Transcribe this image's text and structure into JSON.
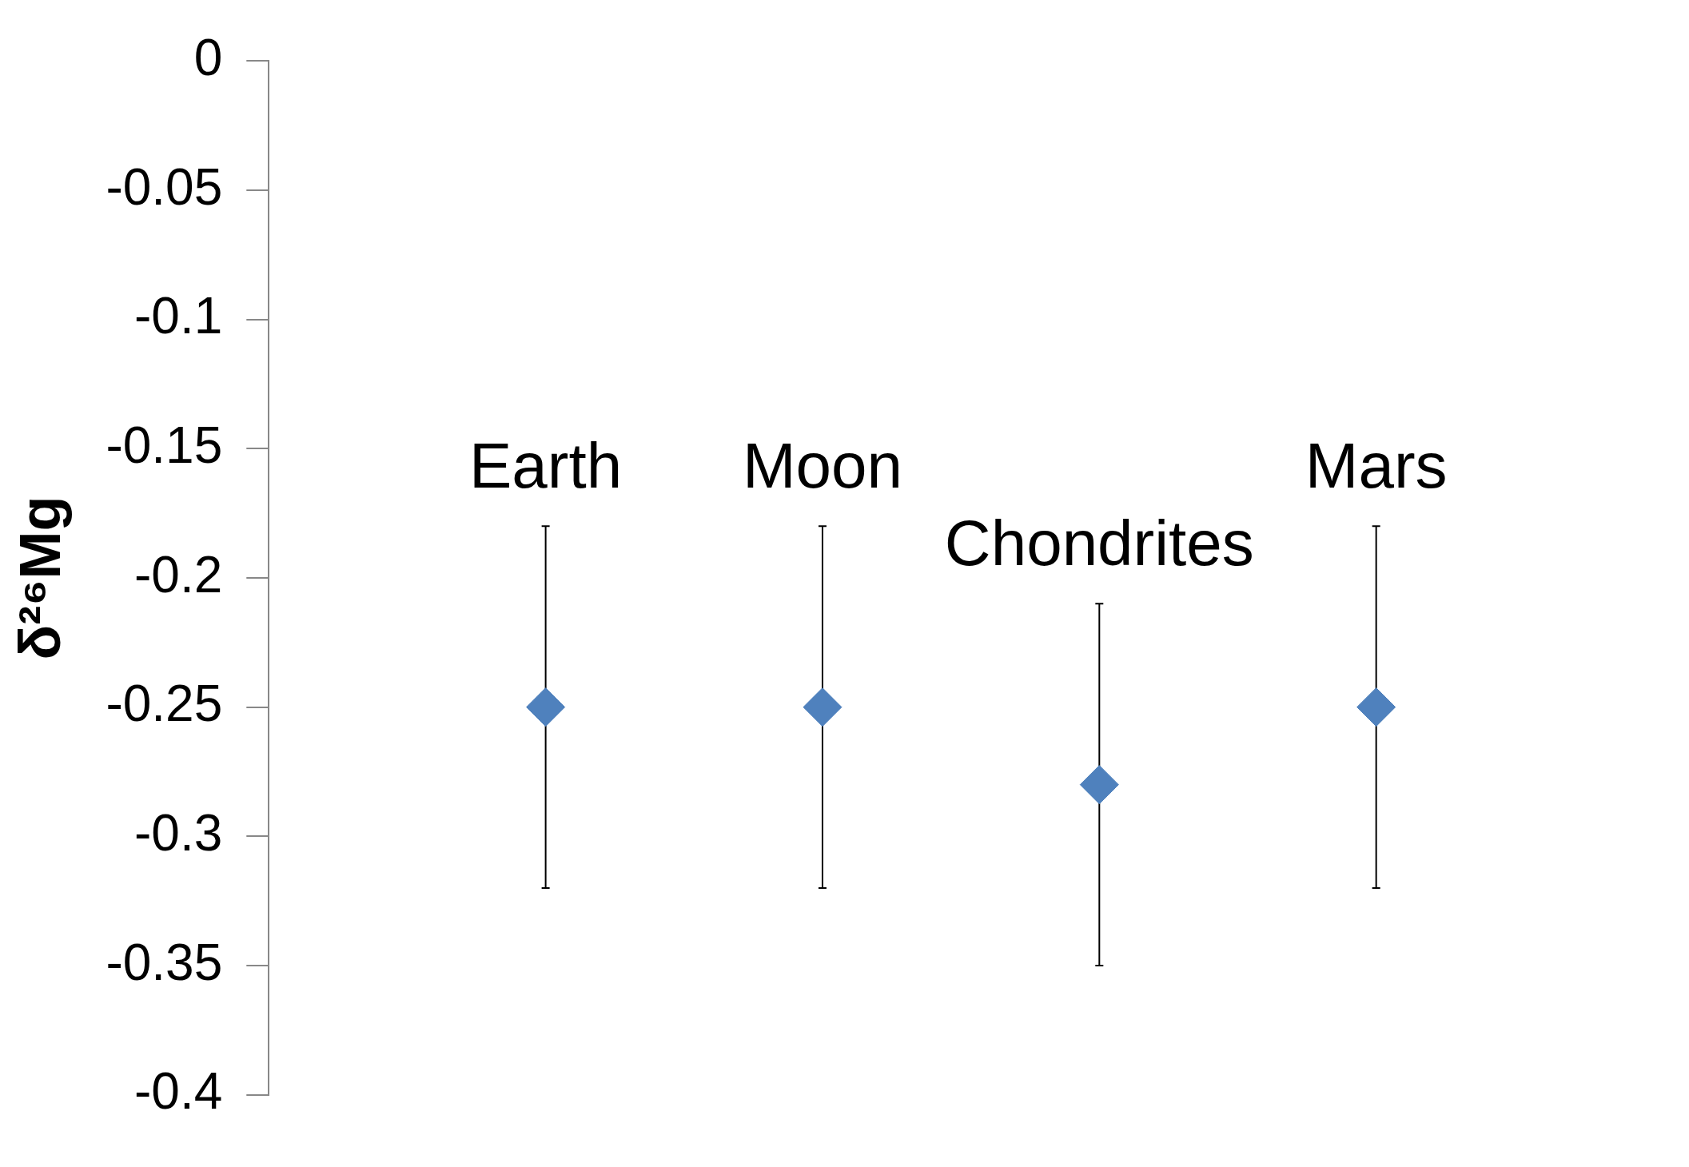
{
  "chart_data": {
    "type": "scatter",
    "ylabel": "δ²⁶Mg",
    "categories": [
      "Earth",
      "Moon",
      "Chondrites",
      "Mars"
    ],
    "series": [
      {
        "color": "#4f81bd",
        "values": [
          -0.25,
          -0.25,
          -0.28,
          -0.25
        ],
        "errors": [
          0.07,
          0.07,
          0.07,
          0.07
        ]
      }
    ],
    "ylim": [
      -0.4,
      0
    ],
    "yticks": [
      0,
      -0.05,
      -0.1,
      -0.15,
      -0.2,
      -0.25,
      -0.3,
      -0.35,
      -0.4
    ],
    "grid": false,
    "legend": false,
    "marker": "diamond"
  }
}
